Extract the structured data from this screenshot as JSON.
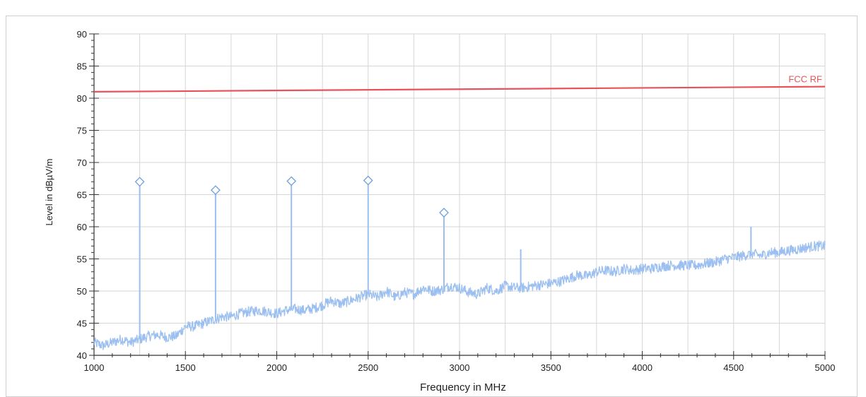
{
  "chart_data": {
    "type": "line",
    "title": "",
    "xlabel": "Frequency in MHz",
    "ylabel": "Level in dBµV/m",
    "xlim": [
      1000,
      5000
    ],
    "ylim": [
      40,
      90
    ],
    "grid": true,
    "x_ticks": [
      1000,
      1500,
      2000,
      2500,
      3000,
      3500,
      4000,
      4500,
      5000
    ],
    "y_ticks": [
      40,
      45,
      50,
      55,
      60,
      65,
      70,
      75,
      80,
      85,
      90
    ],
    "series": [
      {
        "name": "",
        "color": "#9bbff0",
        "x": [
          1000,
          1050,
          1100,
          1150,
          1200,
          1250,
          1300,
          1350,
          1400,
          1450,
          1500,
          1550,
          1600,
          1650,
          1700,
          1750,
          1800,
          1850,
          1900,
          1950,
          2000,
          2050,
          2100,
          2150,
          2200,
          2250,
          2300,
          2350,
          2400,
          2450,
          2500,
          2550,
          2600,
          2650,
          2700,
          2750,
          2800,
          2850,
          2900,
          2950,
          3000,
          3050,
          3100,
          3150,
          3200,
          3250,
          3300,
          3350,
          3400,
          3450,
          3500,
          3550,
          3600,
          3650,
          3700,
          3750,
          3800,
          3850,
          3900,
          3950,
          4000,
          4050,
          4100,
          4150,
          4200,
          4250,
          4300,
          4350,
          4400,
          4450,
          4500,
          4550,
          4600,
          4650,
          4700,
          4750,
          4800,
          4850,
          4900,
          4950,
          5000
        ],
        "y": [
          42,
          41.5,
          42,
          42.5,
          42,
          42.5,
          43,
          43.2,
          42.8,
          43,
          44.5,
          44.5,
          45,
          45.5,
          46,
          46,
          46.5,
          46.8,
          47,
          46.8,
          46.5,
          47,
          47.2,
          47,
          47.3,
          47.8,
          48.5,
          48,
          48.5,
          49,
          49.5,
          49,
          50,
          49,
          49.8,
          49.5,
          50.5,
          50,
          50.2,
          50.8,
          50.5,
          49.8,
          49.5,
          50.5,
          50,
          50.8,
          50.5,
          50.5,
          50.8,
          51,
          51.2,
          51.5,
          52,
          52.5,
          52.3,
          53,
          53.2,
          53,
          53.5,
          53.2,
          53.5,
          53.5,
          53.8,
          54,
          54,
          54,
          54,
          54.3,
          54.5,
          55,
          55.2,
          55.5,
          55.8,
          55.5,
          56,
          56,
          56.3,
          56.5,
          56.8,
          57,
          57
        ]
      },
      {
        "name": "",
        "color": "#9bbff0",
        "type": "spikes",
        "x": [
          1250,
          1665,
          2080,
          2500,
          2915,
          3335,
          4595
        ],
        "y": [
          67,
          65.5,
          67,
          67,
          62,
          56.5,
          60
        ]
      },
      {
        "name": "",
        "type": "markers",
        "marker": "diamond",
        "color": "#6fa0e0",
        "x": [
          1250,
          1665,
          2080,
          2500,
          2915
        ],
        "y": [
          67,
          65.7,
          67.1,
          67.2,
          62.2
        ]
      }
    ],
    "limit_line": {
      "label": "FCC RF",
      "color": "#e8525a",
      "x": [
        1000,
        5000
      ],
      "y": [
        81,
        81.8
      ]
    }
  }
}
